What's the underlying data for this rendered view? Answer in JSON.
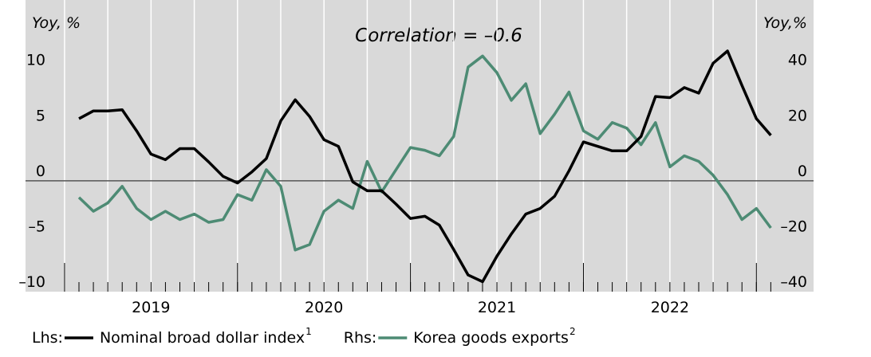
{
  "chart_data": {
    "type": "line",
    "annotations": {
      "left_unit": "Yoy, %",
      "right_unit": "Yoy,%",
      "correlation": "Correlation = –0.6"
    },
    "categories": [
      null,
      null,
      null,
      null,
      null,
      "2019",
      null,
      null,
      null,
      null,
      null,
      null,
      null,
      null,
      null,
      null,
      null,
      "2020",
      null,
      null,
      null,
      null,
      null,
      null,
      null,
      null,
      null,
      null,
      null,
      "2021",
      null,
      null,
      null,
      null,
      null,
      null,
      null,
      null,
      null,
      null,
      null,
      "2022",
      null,
      null,
      null,
      null,
      null,
      null,
      null
    ],
    "ylim": [
      -10,
      16.3
    ],
    "yticks": [
      10,
      5,
      0,
      {
        "value": -5,
        "label": "–5"
      },
      {
        "value": -10,
        "label": "–10"
      }
    ],
    "y2lim": [
      -40,
      65.2
    ],
    "y2ticks": [
      40,
      20,
      0,
      {
        "value": -20,
        "label": "–20"
      },
      {
        "value": -40,
        "label": "–40"
      }
    ],
    "series": [
      {
        "name": "Nominal broad dollar index",
        "legend_prefix": "Lhs:",
        "footnote": "1",
        "color": "#000000",
        "axis": "y",
        "values": [
          5.6,
          6.3,
          6.3,
          6.4,
          4.5,
          2.4,
          1.9,
          2.9,
          2.9,
          1.7,
          0.4,
          -0.2,
          0.8,
          2.0,
          5.4,
          7.3,
          5.8,
          3.7,
          3.1,
          -0.1,
          -0.9,
          -0.9,
          -2.1,
          -3.4,
          -3.2,
          -4.0,
          -6.2,
          -8.5,
          -9.1,
          -6.8,
          -4.8,
          -3.0,
          -2.5,
          -1.4,
          0.9,
          3.5,
          3.1,
          2.7,
          2.7,
          4.0,
          7.6,
          7.5,
          8.4,
          7.9,
          10.6,
          11.7,
          8.6,
          5.6,
          4.1
        ]
      },
      {
        "name": "Korea goods exports",
        "legend_prefix": "Rhs:",
        "footnote": "2",
        "color": "#4d8b74",
        "axis": "y2",
        "values": [
          -6,
          -11,
          -8,
          -2,
          -10,
          -14,
          -11,
          -14,
          -12,
          -15,
          -14,
          -5,
          -7,
          4,
          -2,
          -25,
          -23,
          -11,
          -7,
          -10,
          7,
          -4,
          4,
          12,
          11,
          9,
          16,
          41,
          45,
          39,
          29,
          35,
          17,
          24,
          32,
          18,
          15,
          21,
          19,
          13,
          21,
          5,
          9,
          7,
          2,
          -5,
          -14,
          -10,
          -17
        ]
      }
    ]
  }
}
